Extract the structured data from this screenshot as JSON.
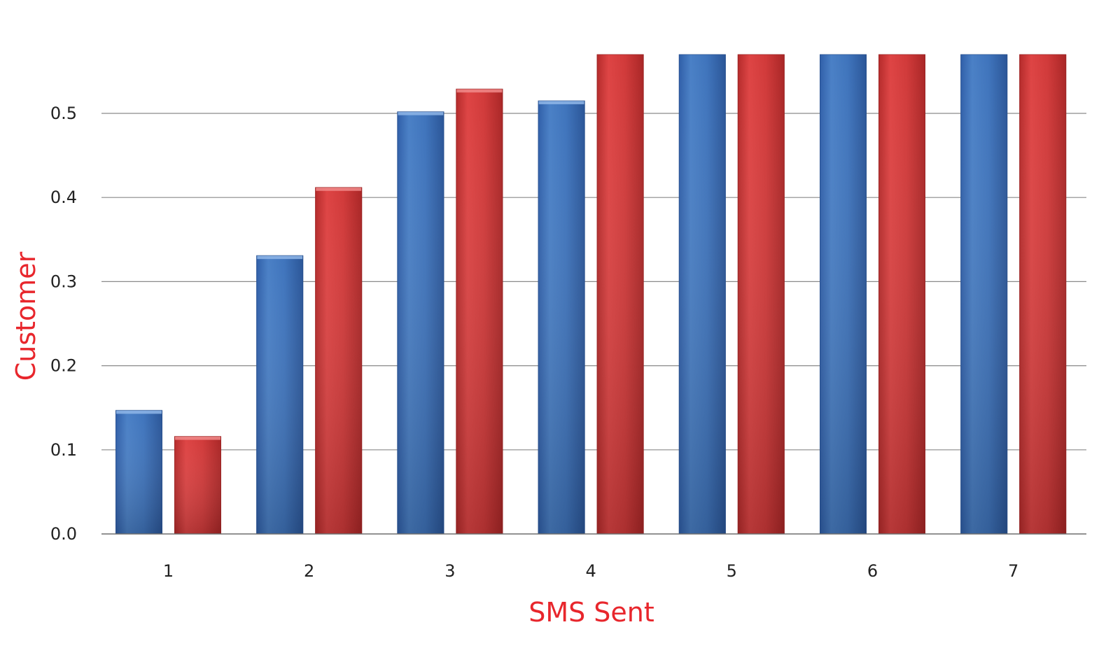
{
  "chart_data": {
    "type": "bar",
    "categories": [
      "1",
      "2",
      "3",
      "4",
      "5",
      "6",
      "7"
    ],
    "series": [
      {
        "color": "#3e74bd",
        "values": [
          0.147,
          0.331,
          0.502,
          0.515,
          0.57,
          0.57,
          0.57
        ]
      },
      {
        "color": "#d53a3a",
        "values": [
          0.116,
          0.412,
          0.529,
          0.57,
          0.57,
          0.57,
          0.57
        ]
      }
    ],
    "xlabel": "SMS Sent",
    "ylabel": "Customer",
    "ylim": [
      0,
      0.57
    ],
    "yticks": [
      "0.0",
      "0.1",
      "0.2",
      "0.3",
      "0.4",
      "0.5"
    ],
    "grid": true,
    "legend": "none",
    "label_color": "#e8262c"
  }
}
